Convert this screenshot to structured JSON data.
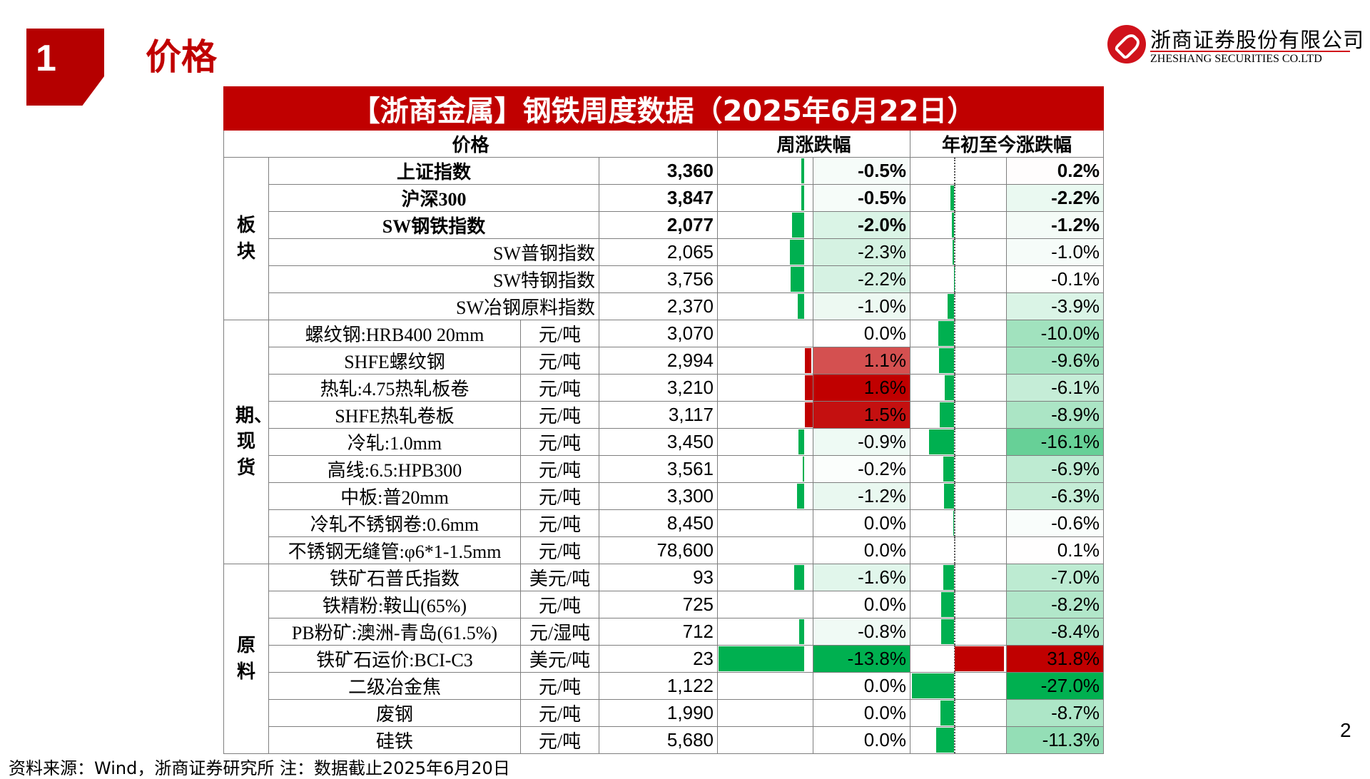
{
  "section": {
    "number": "1",
    "title": "价格"
  },
  "logo": {
    "cn": "浙商证券股份有限公司",
    "en": "ZHESHANG SECURITIES CO.LTD"
  },
  "table": {
    "title": "【浙商金属】钢铁周度数据（2025年6月22日）",
    "headers": {
      "price": "价格",
      "weekly": "周涨跌幅",
      "ytd": "年初至今涨跌幅"
    },
    "groups": [
      {
        "label": "板块",
        "rows": [
          {
            "name": "上证指数",
            "unit": "",
            "value": "3,360",
            "weekly": -0.5,
            "weekly_text": "-0.5%",
            "ytd": 0.2,
            "ytd_text": "0.2%",
            "bold": true
          },
          {
            "name": "沪深300",
            "unit": "",
            "value": "3,847",
            "weekly": -0.5,
            "weekly_text": "-0.5%",
            "ytd": -2.2,
            "ytd_text": "-2.2%",
            "bold": true
          },
          {
            "name": "SW钢铁指数",
            "unit": "",
            "value": "2,077",
            "weekly": -2.0,
            "weekly_text": "-2.0%",
            "ytd": -1.2,
            "ytd_text": "-1.2%",
            "bold": true
          },
          {
            "name": "SW普钢指数",
            "unit": "",
            "value": "2,065",
            "weekly": -2.3,
            "weekly_text": "-2.3%",
            "ytd": -1.0,
            "ytd_text": "-1.0%",
            "right": true
          },
          {
            "name": "SW特钢指数",
            "unit": "",
            "value": "3,756",
            "weekly": -2.2,
            "weekly_text": "-2.2%",
            "ytd": -0.1,
            "ytd_text": "-0.1%",
            "right": true
          },
          {
            "name": "SW冶钢原料指数",
            "unit": "",
            "value": "2,370",
            "weekly": -1.0,
            "weekly_text": "-1.0%",
            "ytd": -3.9,
            "ytd_text": "-3.9%",
            "right": true
          }
        ]
      },
      {
        "label": "期、现货",
        "rows": [
          {
            "name": "螺纹钢:HRB400 20mm",
            "unit": "元/吨",
            "value": "3,070",
            "weekly": 0.0,
            "weekly_text": "0.0%",
            "ytd": -10.0,
            "ytd_text": "-10.0%"
          },
          {
            "name": "SHFE螺纹钢",
            "unit": "元/吨",
            "value": "2,994",
            "weekly": 1.1,
            "weekly_text": "1.1%",
            "ytd": -9.6,
            "ytd_text": "-9.6%"
          },
          {
            "name": "热轧:4.75热轧板卷",
            "unit": "元/吨",
            "value": "3,210",
            "weekly": 1.6,
            "weekly_text": "1.6%",
            "ytd": -6.1,
            "ytd_text": "-6.1%"
          },
          {
            "name": "SHFE热轧卷板",
            "unit": "元/吨",
            "value": "3,117",
            "weekly": 1.5,
            "weekly_text": "1.5%",
            "ytd": -8.9,
            "ytd_text": "-8.9%"
          },
          {
            "name": "冷轧:1.0mm",
            "unit": "元/吨",
            "value": "3,450",
            "weekly": -0.9,
            "weekly_text": "-0.9%",
            "ytd": -16.1,
            "ytd_text": "-16.1%"
          },
          {
            "name": "高线:6.5:HPB300",
            "unit": "元/吨",
            "value": "3,561",
            "weekly": -0.2,
            "weekly_text": "-0.2%",
            "ytd": -6.9,
            "ytd_text": "-6.9%"
          },
          {
            "name": "中板:普20mm",
            "unit": "元/吨",
            "value": "3,300",
            "weekly": -1.2,
            "weekly_text": "-1.2%",
            "ytd": -6.3,
            "ytd_text": "-6.3%"
          },
          {
            "name": "冷轧不锈钢卷:0.6mm",
            "unit": "元/吨",
            "value": "8,450",
            "weekly": 0.0,
            "weekly_text": "0.0%",
            "ytd": -0.6,
            "ytd_text": "-0.6%"
          },
          {
            "name": "不锈钢无缝管:φ6*1-1.5mm",
            "unit": "元/吨",
            "value": "78,600",
            "weekly": 0.0,
            "weekly_text": "0.0%",
            "ytd": 0.1,
            "ytd_text": "0.1%"
          }
        ]
      },
      {
        "label": "原料",
        "rows": [
          {
            "name": "铁矿石普氏指数",
            "unit": "美元/吨",
            "value": "93",
            "weekly": -1.6,
            "weekly_text": "-1.6%",
            "ytd": -7.0,
            "ytd_text": "-7.0%"
          },
          {
            "name": "铁精粉:鞍山(65%)",
            "unit": "元/吨",
            "value": "725",
            "weekly": 0.0,
            "weekly_text": "0.0%",
            "ytd": -8.2,
            "ytd_text": "-8.2%"
          },
          {
            "name": "PB粉矿:澳洲-青岛(61.5%)",
            "unit": "元/湿吨",
            "value": "712",
            "weekly": -0.8,
            "weekly_text": "-0.8%",
            "ytd": -8.4,
            "ytd_text": "-8.4%"
          },
          {
            "name": "铁矿石运价:BCI-C3",
            "unit": "美元/吨",
            "value": "23",
            "weekly": -13.8,
            "weekly_text": "-13.8%",
            "ytd": 31.8,
            "ytd_text": "31.8%"
          },
          {
            "name": "二级冶金焦",
            "unit": "元/吨",
            "value": "1,122",
            "weekly": 0.0,
            "weekly_text": "0.0%",
            "ytd": -27.0,
            "ytd_text": "-27.0%"
          },
          {
            "name": "废钢",
            "unit": "元/吨",
            "value": "1,990",
            "weekly": 0.0,
            "weekly_text": "0.0%",
            "ytd": -8.7,
            "ytd_text": "-8.7%"
          },
          {
            "name": "硅铁",
            "unit": "元/吨",
            "value": "5,680",
            "weekly": 0.0,
            "weekly_text": "0.0%",
            "ytd": -11.3,
            "ytd_text": "-11.3%"
          }
        ]
      }
    ]
  },
  "colors": {
    "brand": "#c00000",
    "up": "#c00000",
    "down": "#00b050"
  },
  "page_number": "2",
  "footer": "资料来源：Wind，浙商证券研究所    注：数据截止2025年6月20日"
}
